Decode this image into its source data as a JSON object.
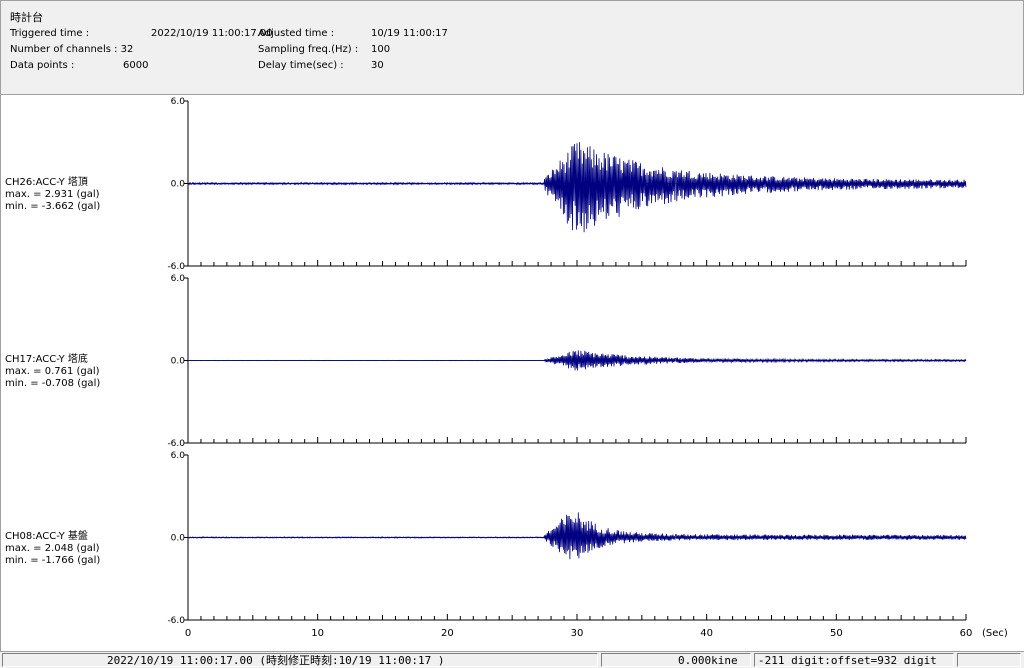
{
  "header": {
    "title": "時計台",
    "triggered_label": "Triggered time :",
    "triggered_value": "2022/10/19 11:00:17.00",
    "channels_label": "Number of channels : 32",
    "datapoints_label": "Data points :",
    "datapoints_value": "6000",
    "adjusted_label": "Adjusted time :",
    "adjusted_value": "10/19 11:00:17",
    "sampling_label": "Sampling freq.(Hz) :",
    "sampling_value": "100",
    "delay_label": "Delay time(sec) :",
    "delay_value": "30"
  },
  "chart_data": {
    "type": "line",
    "xlabel": "(Sec)",
    "xlim": [
      0,
      60
    ],
    "x_ticks": [
      "0",
      "10",
      "20",
      "30",
      "40",
      "50",
      "60"
    ],
    "ylim": [
      -6.0,
      6.0
    ],
    "y_tick_labels": [
      "6.0",
      "0.0",
      "-6.0"
    ],
    "line_color": "#000080",
    "grid": false,
    "series": [
      {
        "name": "CH26:ACC-Y 塔頂",
        "max_label": "max. = 2.931 (gal)",
        "min_label": "min. = -3.662 (gal)",
        "max": 2.931,
        "min": -3.662,
        "onset": 27.5,
        "peak_time": 30.0,
        "decay": 6.0
      },
      {
        "name": "CH17:ACC-Y 塔底",
        "max_label": "max. = 0.761 (gal)",
        "min_label": "min. = -0.708 (gal)",
        "max": 0.761,
        "min": -0.708,
        "onset": 27.5,
        "peak_time": 30.0,
        "decay": 4.5
      },
      {
        "name": "CH08:ACC-Y 基盤",
        "max_label": "max. = 2.048 (gal)",
        "min_label": "min. = -1.766 (gal)",
        "max": 2.048,
        "min": -1.766,
        "onset": 27.5,
        "peak_time": 29.8,
        "decay": 1.8
      }
    ]
  },
  "status": {
    "time": "2022/10/19 11:00:17.00  (時刻修正時刻:10/19 11:00:17  )",
    "kine": "0.000kine",
    "digit": "-211 digit:offset=932 digit"
  }
}
